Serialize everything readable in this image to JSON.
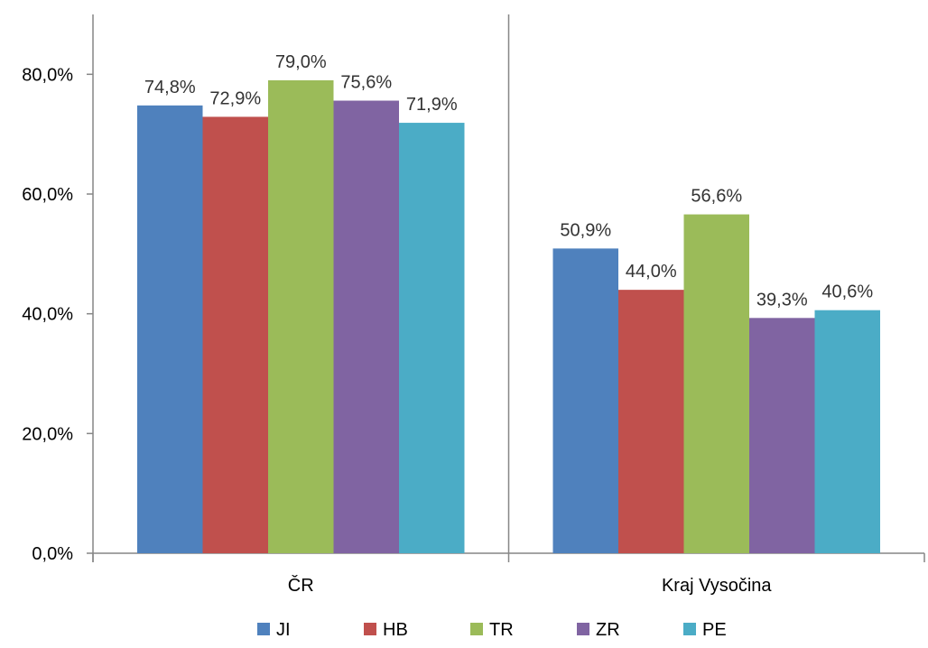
{
  "chart_data": {
    "type": "bar",
    "title": "",
    "xlabel": "",
    "ylabel": "",
    "categories": [
      "ČR",
      "Kraj Vysočina"
    ],
    "series": [
      {
        "name": "JI",
        "values": [
          74.8,
          50.9
        ],
        "labels": [
          "74,8%",
          "50,9%"
        ],
        "color": "#4F81BD"
      },
      {
        "name": "HB",
        "values": [
          72.9,
          44.0
        ],
        "labels": [
          "72,9%",
          "44,0%"
        ],
        "color": "#C0504D"
      },
      {
        "name": "TR",
        "values": [
          79.0,
          56.6
        ],
        "labels": [
          "79,0%",
          "56,6%"
        ],
        "color": "#9BBB59"
      },
      {
        "name": "ZR",
        "values": [
          75.6,
          39.3
        ],
        "labels": [
          "75,6%",
          "39,3%"
        ],
        "color": "#8064A2"
      },
      {
        "name": "PE",
        "values": [
          71.9,
          40.6
        ],
        "labels": [
          "71,9%",
          "40,6%"
        ],
        "color": "#4BACC6"
      }
    ],
    "ylim": [
      0,
      90
    ],
    "yticks": [
      0,
      20,
      40,
      60,
      80
    ],
    "ytick_labels": [
      "0,0%",
      "20,0%",
      "40,0%",
      "60,0%",
      "80,0%"
    ],
    "grid": false,
    "legend": "bottom"
  }
}
